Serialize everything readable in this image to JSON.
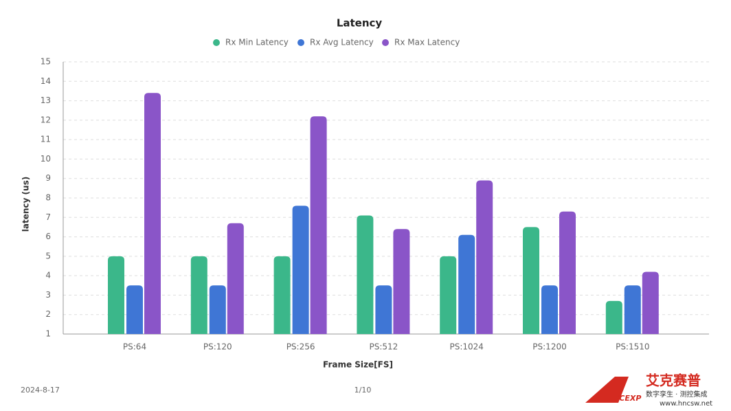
{
  "chart_data": {
    "type": "bar",
    "title": "Latency",
    "x_label": "Frame Size[FS]",
    "y_label": "latency (us)",
    "categories": [
      "PS:64",
      "PS:120",
      "PS:256",
      "PS:512",
      "PS:1024",
      "PS:1200",
      "PS:1510"
    ],
    "series": [
      {
        "name": "Rx Min Latency",
        "color": "#3bb78a",
        "values": [
          5.0,
          5.0,
          5.0,
          7.1,
          5.0,
          6.5,
          2.7
        ]
      },
      {
        "name": "Rx Avg Latency",
        "color": "#3f76d5",
        "values": [
          3.5,
          3.5,
          7.6,
          3.5,
          6.1,
          3.5,
          3.5
        ]
      },
      {
        "name": "Rx Max Latency",
        "color": "#8a55c8",
        "values": [
          13.4,
          6.7,
          12.2,
          6.4,
          8.9,
          7.3,
          4.2
        ]
      }
    ],
    "ylim": [
      1,
      15
    ],
    "yticks": [
      1,
      2,
      3,
      4,
      5,
      6,
      7,
      8,
      9,
      10,
      11,
      12,
      13,
      14,
      15
    ],
    "grid": true
  },
  "footer": {
    "date": "2024-8-17",
    "page": "1/10"
  },
  "logo": {
    "brand": "艾克赛普",
    "mark": "ACCEXP",
    "tagline": "数字孪生 · 测控集成",
    "url": "www.hncsw.net"
  }
}
